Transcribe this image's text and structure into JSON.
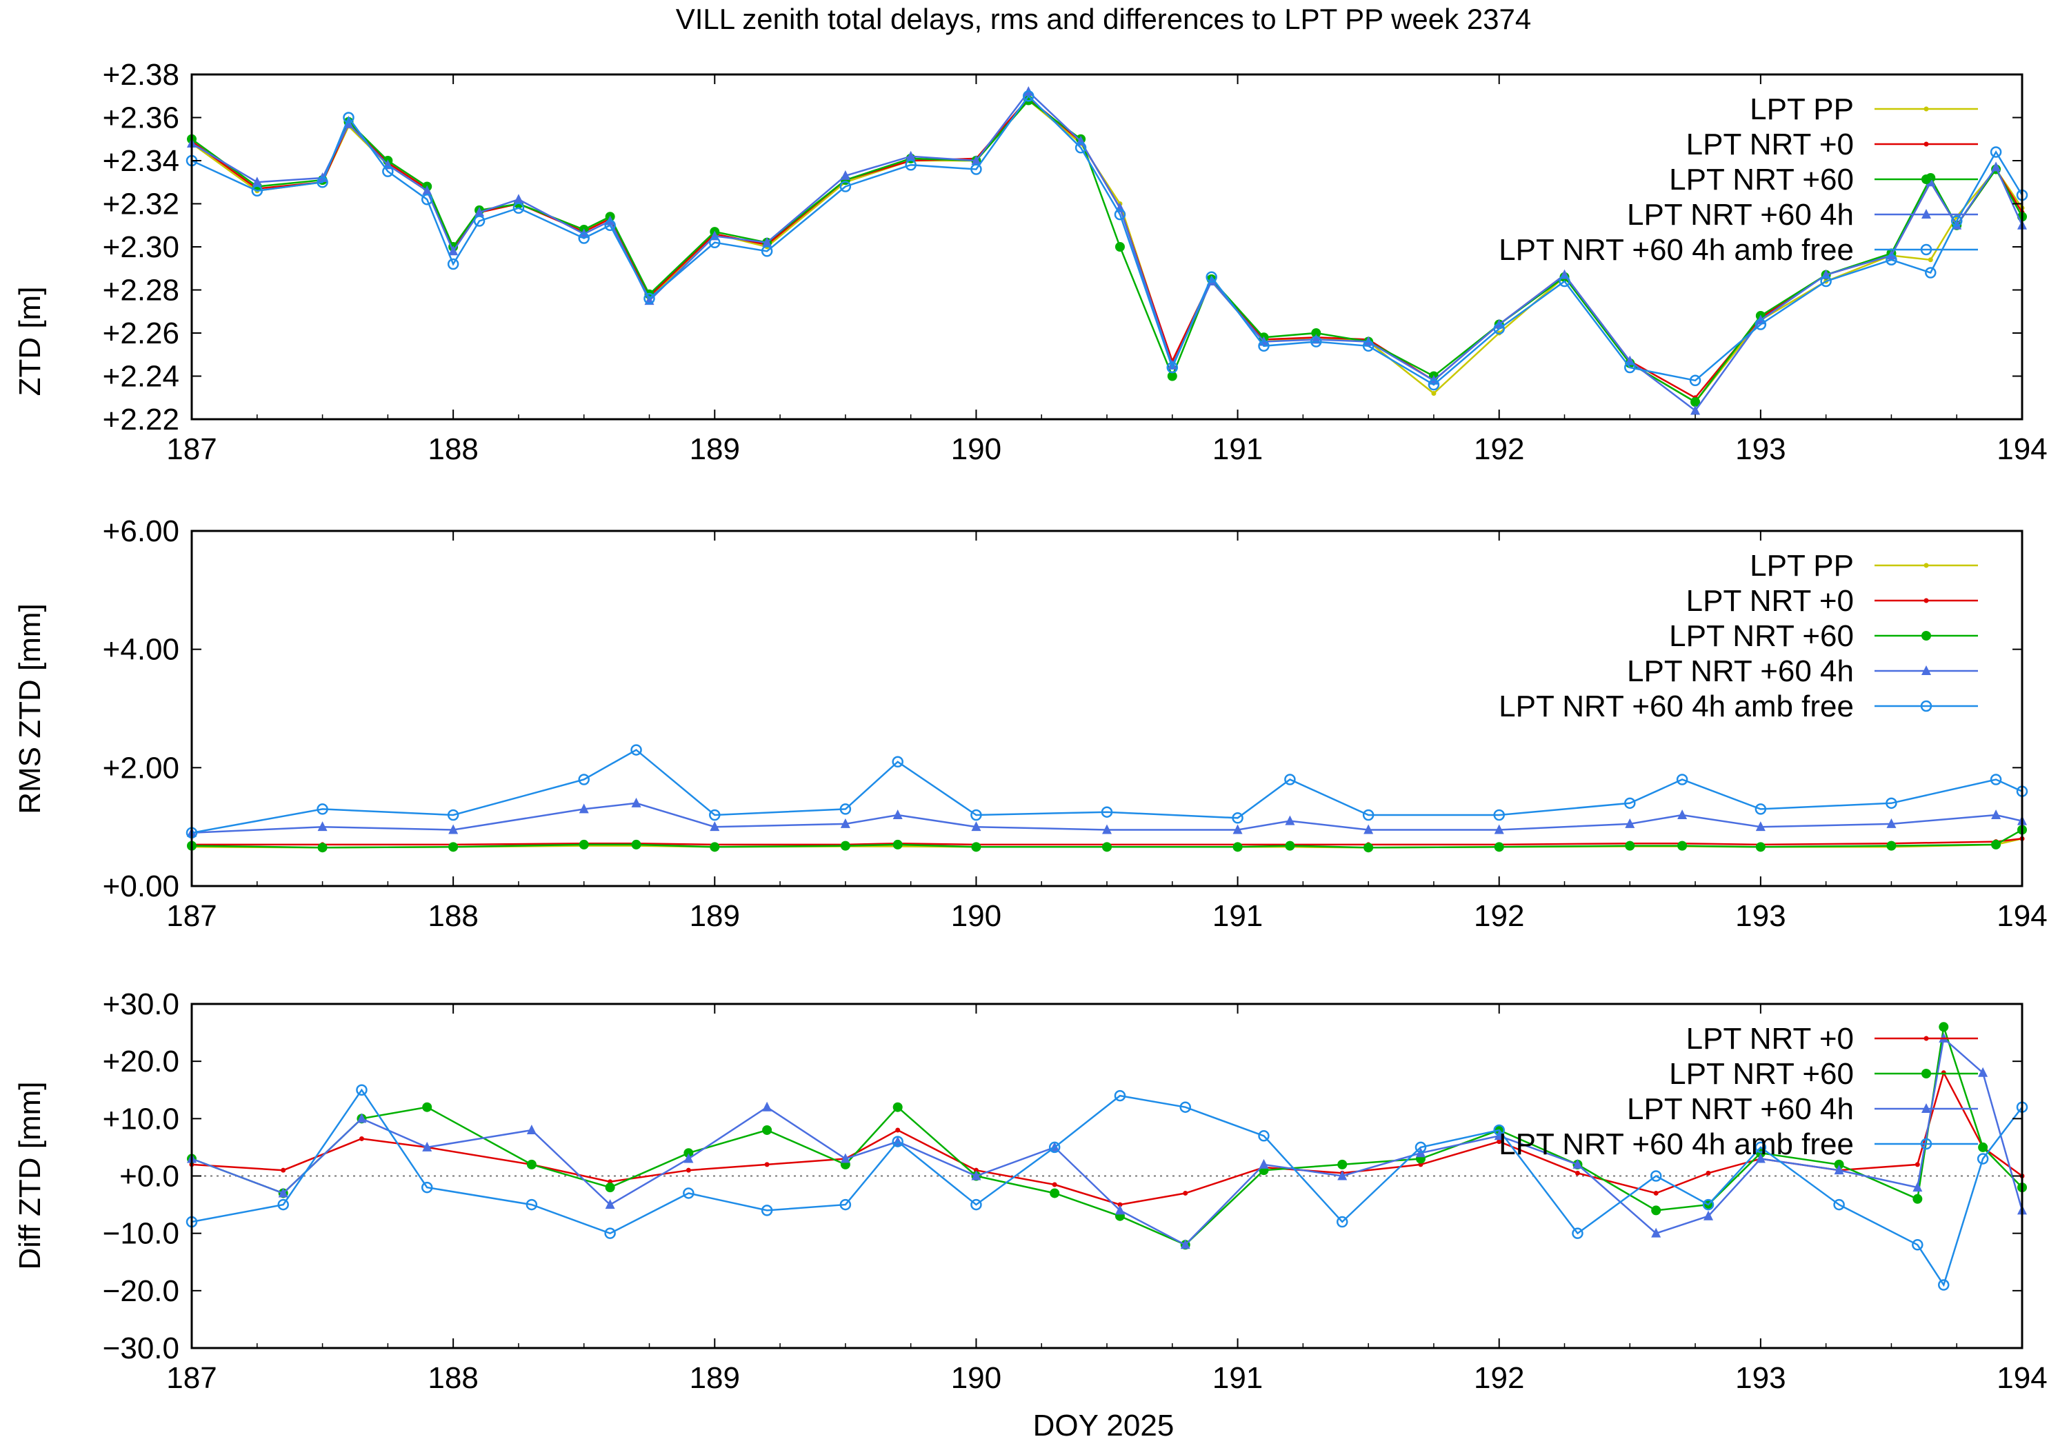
{
  "title": "VILL zenith total delays, rms and differences to LPT PP week 2374",
  "xlabel": "DOY 2025",
  "colors": {
    "LPT PP": "#c8c800",
    "LPT NRT +0": "#e00000",
    "LPT NRT +60": "#00b000",
    "LPT NRT +60 4h": "#4a6ee0",
    "LPT NRT +60 4h amb free": "#1e8ce8"
  },
  "chart_data": [
    {
      "type": "line",
      "ylabel": "ZTD [m]",
      "xlim": [
        187,
        194
      ],
      "ylim": [
        2.22,
        2.38
      ],
      "x_ticks": [
        "187",
        "188",
        "189",
        "190",
        "191",
        "192",
        "193",
        "194"
      ],
      "y_ticks": [
        "+2.22",
        "+2.24",
        "+2.26",
        "+2.28",
        "+2.30",
        "+2.32",
        "+2.34",
        "+2.36",
        "+2.38"
      ],
      "legend": [
        "LPT PP",
        "LPT NRT +0",
        "LPT NRT +60",
        "LPT NRT +60 4h",
        "LPT NRT +60 4h amb free"
      ],
      "legend_position": "top-right",
      "x": [
        187.0,
        187.25,
        187.5,
        187.6,
        187.75,
        187.9,
        188.0,
        188.1,
        188.25,
        188.5,
        188.6,
        188.75,
        189.0,
        189.2,
        189.5,
        189.75,
        190.0,
        190.2,
        190.4,
        190.55,
        190.75,
        190.9,
        191.1,
        191.3,
        191.5,
        191.75,
        192.0,
        192.25,
        192.5,
        192.75,
        193.0,
        193.25,
        193.5,
        193.65,
        193.75,
        193.9,
        194.0
      ],
      "series": [
        {
          "name": "LPT PP",
          "values": [
            2.348,
            2.326,
            2.33,
            2.356,
            2.338,
            2.326,
            2.3,
            2.316,
            2.32,
            2.308,
            2.313,
            2.276,
            2.306,
            2.3,
            2.33,
            2.34,
            2.34,
            2.368,
            2.348,
            2.32,
            2.246,
            2.284,
            2.256,
            2.258,
            2.256,
            2.232,
            2.26,
            2.286,
            2.246,
            2.228,
            2.266,
            2.284,
            2.296,
            2.294,
            2.314,
            2.336,
            2.318
          ]
        },
        {
          "name": "LPT NRT +0",
          "values": [
            2.349,
            2.327,
            2.33,
            2.357,
            2.339,
            2.327,
            2.299,
            2.316,
            2.32,
            2.307,
            2.313,
            2.277,
            2.306,
            2.301,
            2.331,
            2.34,
            2.341,
            2.369,
            2.349,
            2.318,
            2.247,
            2.285,
            2.257,
            2.258,
            2.257,
            2.238,
            2.264,
            2.287,
            2.247,
            2.23,
            2.267,
            2.287,
            2.296,
            2.33,
            2.31,
            2.336,
            2.316
          ]
        },
        {
          "name": "LPT NRT +60",
          "values": [
            2.35,
            2.328,
            2.331,
            2.358,
            2.34,
            2.328,
            2.3,
            2.317,
            2.32,
            2.308,
            2.314,
            2.278,
            2.307,
            2.302,
            2.331,
            2.341,
            2.34,
            2.368,
            2.35,
            2.3,
            2.24,
            2.285,
            2.258,
            2.26,
            2.256,
            2.24,
            2.264,
            2.286,
            2.246,
            2.228,
            2.268,
            2.287,
            2.297,
            2.332,
            2.31,
            2.336,
            2.314
          ]
        },
        {
          "name": "LPT NRT +60 4h",
          "values": [
            2.348,
            2.33,
            2.332,
            2.357,
            2.338,
            2.326,
            2.298,
            2.316,
            2.322,
            2.306,
            2.312,
            2.275,
            2.305,
            2.302,
            2.333,
            2.342,
            2.34,
            2.372,
            2.349,
            2.318,
            2.245,
            2.284,
            2.256,
            2.257,
            2.256,
            2.238,
            2.264,
            2.287,
            2.247,
            2.224,
            2.266,
            2.287,
            2.296,
            2.33,
            2.31,
            2.337,
            2.31
          ]
        },
        {
          "name": "LPT NRT +60 4h amb free",
          "values": [
            2.34,
            2.326,
            2.33,
            2.36,
            2.335,
            2.322,
            2.292,
            2.312,
            2.318,
            2.304,
            2.31,
            2.276,
            2.302,
            2.298,
            2.328,
            2.338,
            2.336,
            2.37,
            2.346,
            2.315,
            2.244,
            2.286,
            2.254,
            2.256,
            2.254,
            2.236,
            2.262,
            2.284,
            2.244,
            2.238,
            2.264,
            2.284,
            2.294,
            2.288,
            2.312,
            2.344,
            2.324
          ]
        }
      ]
    },
    {
      "type": "line",
      "ylabel": "RMS ZTD [mm]",
      "xlim": [
        187,
        194
      ],
      "ylim": [
        0,
        6
      ],
      "x_ticks": [
        "187",
        "188",
        "189",
        "190",
        "191",
        "192",
        "193",
        "194"
      ],
      "y_ticks": [
        "+0.00",
        "+2.00",
        "+4.00",
        "+6.00"
      ],
      "legend": [
        "LPT PP",
        "LPT NRT +0",
        "LPT NRT +60",
        "LPT NRT +60 4h",
        "LPT NRT +60 4h amb free"
      ],
      "legend_position": "top-right",
      "x": [
        187.0,
        187.5,
        188.0,
        188.5,
        188.7,
        189.0,
        189.5,
        189.7,
        190.0,
        190.5,
        191.0,
        191.2,
        191.5,
        192.0,
        192.5,
        192.7,
        193.0,
        193.5,
        193.9,
        194.0
      ],
      "series": [
        {
          "name": "LPT PP",
          "values": [
            0.66,
            0.65,
            0.66,
            0.68,
            0.68,
            0.66,
            0.67,
            0.67,
            0.66,
            0.66,
            0.66,
            0.66,
            0.65,
            0.66,
            0.67,
            0.67,
            0.66,
            0.66,
            0.7,
            0.8
          ]
        },
        {
          "name": "LPT NRT +0",
          "values": [
            0.7,
            0.7,
            0.7,
            0.72,
            0.72,
            0.7,
            0.7,
            0.72,
            0.7,
            0.7,
            0.7,
            0.7,
            0.7,
            0.7,
            0.72,
            0.72,
            0.7,
            0.72,
            0.75,
            0.8
          ]
        },
        {
          "name": "LPT NRT +60",
          "values": [
            0.68,
            0.65,
            0.66,
            0.7,
            0.7,
            0.66,
            0.68,
            0.7,
            0.66,
            0.66,
            0.66,
            0.68,
            0.65,
            0.66,
            0.68,
            0.68,
            0.66,
            0.68,
            0.7,
            0.95
          ]
        },
        {
          "name": "LPT NRT +60 4h",
          "values": [
            0.9,
            1.0,
            0.95,
            1.3,
            1.4,
            1.0,
            1.05,
            1.2,
            1.0,
            0.95,
            0.95,
            1.1,
            0.95,
            0.95,
            1.05,
            1.2,
            1.0,
            1.05,
            1.2,
            1.1
          ]
        },
        {
          "name": "LPT NRT +60 4h amb free",
          "values": [
            0.9,
            1.3,
            1.2,
            1.8,
            2.3,
            1.2,
            1.3,
            2.1,
            1.2,
            1.25,
            1.15,
            1.8,
            1.2,
            1.2,
            1.4,
            1.8,
            1.3,
            1.4,
            1.8,
            1.6
          ]
        }
      ]
    },
    {
      "type": "line",
      "ylabel": "Diff ZTD [mm]",
      "xlim": [
        187,
        194
      ],
      "ylim": [
        -30,
        30
      ],
      "x_ticks": [
        "187",
        "188",
        "189",
        "190",
        "191",
        "192",
        "193",
        "194"
      ],
      "y_ticks": [
        "−30.0",
        "−20.0",
        "−10.0",
        "+0.0",
        "+10.0",
        "+20.0",
        "+30.0"
      ],
      "legend": [
        "LPT NRT +0",
        "LPT NRT +60",
        "LPT NRT +60 4h",
        "LPT NRT +60 4h amb free"
      ],
      "legend_position": "top-right",
      "x": [
        187.0,
        187.35,
        187.65,
        187.9,
        188.3,
        188.6,
        188.9,
        189.2,
        189.5,
        189.7,
        190.0,
        190.3,
        190.55,
        190.8,
        191.1,
        191.4,
        191.7,
        192.0,
        192.3,
        192.6,
        192.8,
        193.0,
        193.3,
        193.6,
        193.7,
        193.85,
        194.0
      ],
      "series": [
        {
          "name": "LPT NRT +0",
          "values": [
            2.0,
            1.0,
            6.5,
            5.0,
            2.0,
            -1.0,
            1.0,
            2.0,
            3.0,
            8.0,
            1.0,
            -1.5,
            -5.0,
            -3.0,
            1.5,
            0.5,
            2.0,
            6.0,
            0.5,
            -3.0,
            0.5,
            3.0,
            1.0,
            2.0,
            18.0,
            5.0,
            0.0
          ]
        },
        {
          "name": "LPT NRT +60",
          "values": [
            3.0,
            -3.0,
            10.0,
            12.0,
            2.0,
            -2.0,
            4.0,
            8.0,
            2.0,
            12.0,
            0.0,
            -3.0,
            -7.0,
            -12.0,
            1.0,
            2.0,
            3.0,
            8.0,
            2.0,
            -6.0,
            -5.0,
            4.0,
            2.0,
            -4.0,
            26.0,
            5.0,
            -2.0
          ]
        },
        {
          "name": "LPT NRT +60 4h",
          "values": [
            3.0,
            -3.0,
            10.0,
            5.0,
            8.0,
            -5.0,
            3.0,
            12.0,
            3.0,
            6.0,
            0.0,
            5.0,
            -6.0,
            -12.0,
            2.0,
            0.0,
            4.0,
            7.0,
            2.0,
            -10.0,
            -7.0,
            3.0,
            1.0,
            -2.0,
            24.0,
            18.0,
            -6.0
          ]
        },
        {
          "name": "LPT NRT +60 4h amb free",
          "values": [
            -8.0,
            -5.0,
            15.0,
            -2.0,
            -5.0,
            -10.0,
            -3.0,
            -6.0,
            -5.0,
            6.0,
            -5.0,
            5.0,
            14.0,
            12.0,
            7.0,
            -8.0,
            5.0,
            8.0,
            -10.0,
            0.0,
            -5.0,
            5.0,
            -5.0,
            -12.0,
            -19.0,
            3.0,
            12.0
          ]
        }
      ]
    }
  ]
}
